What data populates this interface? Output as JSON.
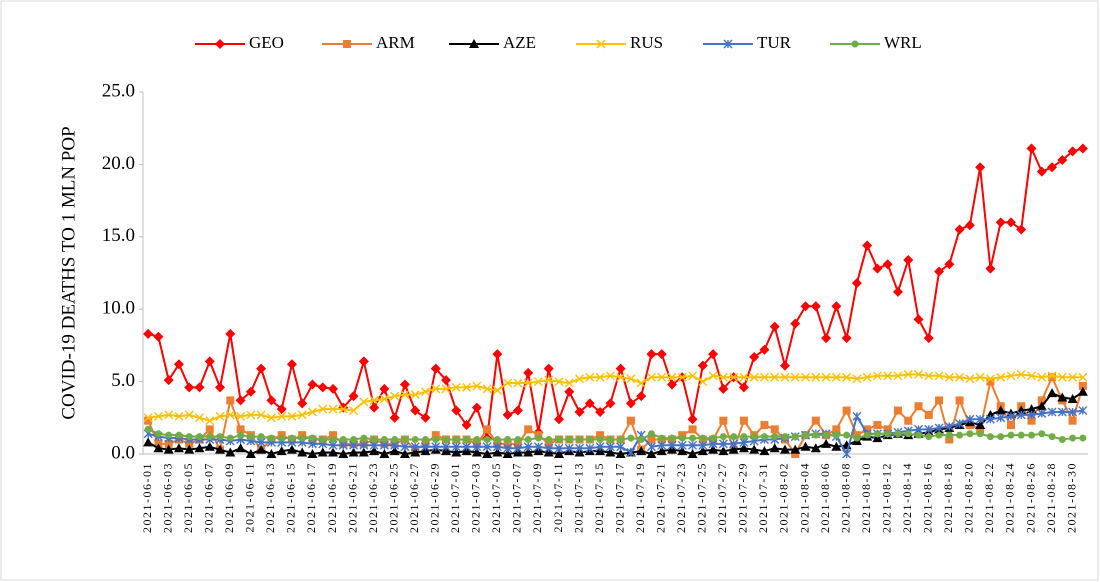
{
  "chart_data": {
    "type": "line",
    "y_label": "COVID-19 DEATHS TO 1 MLN POP",
    "ylim": [
      0,
      25
    ],
    "yticks": [
      {
        "value": 0,
        "label": "0.0"
      },
      {
        "value": 5,
        "label": "5.0"
      },
      {
        "value": 10,
        "label": "10.0"
      },
      {
        "value": 15,
        "label": "15.0"
      },
      {
        "value": 20,
        "label": "20.0"
      },
      {
        "value": 25,
        "label": "25.0"
      }
    ],
    "legend": "top",
    "categories": [
      "2021-06-01",
      null,
      "2021-06-03",
      null,
      "2021-06-05",
      null,
      "2021-06-07",
      null,
      "2021-06-09",
      null,
      "2021-06-11",
      null,
      "2021-06-13",
      null,
      "2021-06-15",
      null,
      "2021-06-17",
      null,
      "2021-06-19",
      null,
      "2021-06-21",
      null,
      "2021-06-23",
      null,
      "2021-06-25",
      null,
      "2021-06-27",
      null,
      "2021-06-29",
      null,
      "2021-07-01",
      null,
      "2021-07-03",
      null,
      "2021-07-05",
      null,
      "2021-07-07",
      null,
      "2021-07-09",
      null,
      "2021-07-11",
      null,
      "2021-07-13",
      null,
      "2021-07-15",
      null,
      "2021-07-17",
      null,
      "2021-07-19",
      null,
      "2021-07-21",
      null,
      "2021-07-23",
      null,
      "2021-07-25",
      null,
      "2021-07-27",
      null,
      "2021-07-29",
      null,
      "2021-07-31",
      null,
      "2021-08-02",
      null,
      "2021-08-04",
      null,
      "2021-08-06",
      null,
      "2021-08-08",
      null,
      "2021-08-10",
      null,
      "2021-08-12",
      null,
      "2021-08-14",
      null,
      "2021-08-16",
      null,
      "2021-08-18",
      null,
      "2021-08-20",
      null,
      "2021-08-22",
      null,
      "2021-08-24",
      null,
      "2021-08-26",
      null,
      "2021-08-28",
      null,
      "2021-08-30",
      null
    ],
    "series": [
      {
        "name": "GEO",
        "color": "#ff0000",
        "marker": "diamond",
        "values": [
          8.3,
          8.1,
          5.1,
          6.2,
          4.6,
          4.6,
          6.4,
          4.6,
          8.3,
          3.7,
          4.3,
          5.9,
          3.7,
          3.1,
          6.2,
          3.5,
          4.8,
          4.6,
          4.5,
          3.2,
          4.0,
          6.4,
          3.2,
          4.5,
          2.5,
          4.8,
          3.0,
          2.5,
          5.9,
          5.1,
          3.0,
          2.0,
          3.2,
          1.1,
          6.9,
          2.7,
          3.0,
          5.6,
          1.5,
          5.9,
          2.4,
          4.3,
          2.9,
          3.5,
          2.9,
          3.5,
          5.9,
          3.5,
          4.0,
          6.9,
          6.9,
          4.8,
          5.3,
          2.4,
          6.1,
          6.9,
          4.5,
          5.3,
          4.6,
          6.7,
          7.2,
          8.8,
          6.1,
          9.0,
          10.2,
          10.2,
          8.0,
          10.2,
          8.0,
          11.8,
          14.4,
          12.8,
          13.1,
          11.2,
          13.4,
          9.3,
          8.0,
          12.6,
          13.1,
          15.5,
          15.8,
          19.8,
          12.8,
          16.0,
          16.0,
          15.5,
          21.1,
          19.5,
          19.8,
          20.3,
          20.9,
          21.1
        ]
      },
      {
        "name": "ARM",
        "color": "#ed7d31",
        "marker": "square",
        "values": [
          2.3,
          0.7,
          0.7,
          1.0,
          0.7,
          1.0,
          1.7,
          0.3,
          3.7,
          1.7,
          1.3,
          0.3,
          1.0,
          1.3,
          1.0,
          1.3,
          1.0,
          1.0,
          1.3,
          0.7,
          0.7,
          0.7,
          1.0,
          0.7,
          0.7,
          1.0,
          0.3,
          0.7,
          1.3,
          1.0,
          1.0,
          1.0,
          0.7,
          1.7,
          0.7,
          0.7,
          0.7,
          1.7,
          1.3,
          0.7,
          1.0,
          1.0,
          1.0,
          1.0,
          1.3,
          1.0,
          1.0,
          2.3,
          0.3,
          1.0,
          1.0,
          1.0,
          1.3,
          1.7,
          1.0,
          1.0,
          2.3,
          0.3,
          2.3,
          1.3,
          2.0,
          1.7,
          1.0,
          0.0,
          1.3,
          2.3,
          1.3,
          1.7,
          3.0,
          1.3,
          1.7,
          2.0,
          1.7,
          3.0,
          2.3,
          3.3,
          2.7,
          3.7,
          1.0,
          3.7,
          2.0,
          1.7,
          5.0,
          3.3,
          2.0,
          3.3,
          2.3,
          3.7,
          5.3,
          3.7,
          2.3,
          4.7
        ]
      },
      {
        "name": "AZE",
        "color": "#000000",
        "marker": "triangle",
        "values": [
          0.8,
          0.4,
          0.3,
          0.4,
          0.3,
          0.4,
          0.5,
          0.3,
          0.1,
          0.4,
          0.0,
          0.3,
          0.0,
          0.2,
          0.3,
          0.1,
          0.0,
          0.1,
          0.1,
          0.0,
          0.1,
          0.1,
          0.2,
          0.0,
          0.2,
          0.0,
          0.1,
          0.2,
          0.3,
          0.2,
          0.1,
          0.2,
          0.1,
          0.0,
          0.1,
          0.0,
          0.1,
          0.1,
          0.2,
          0.1,
          0.0,
          0.2,
          0.1,
          0.2,
          0.2,
          0.1,
          0.0,
          0.1,
          0.2,
          0.0,
          0.2,
          0.3,
          0.2,
          0.0,
          0.2,
          0.3,
          0.2,
          0.3,
          0.4,
          0.3,
          0.2,
          0.4,
          0.3,
          0.3,
          0.5,
          0.4,
          0.7,
          0.5,
          0.6,
          0.9,
          1.2,
          1.1,
          1.3,
          1.4,
          1.3,
          1.4,
          1.5,
          1.7,
          1.8,
          2.0,
          2.2,
          2.0,
          2.7,
          3.0,
          2.8,
          3.0,
          3.1,
          3.3,
          4.2,
          3.9,
          3.8,
          4.3
        ]
      },
      {
        "name": "RUS",
        "color": "#ffc000",
        "marker": "x",
        "values": [
          2.5,
          2.6,
          2.7,
          2.6,
          2.7,
          2.5,
          2.3,
          2.6,
          2.7,
          2.6,
          2.7,
          2.7,
          2.5,
          2.6,
          2.6,
          2.7,
          2.9,
          3.1,
          3.1,
          3.1,
          3.0,
          3.6,
          3.7,
          3.8,
          4.0,
          4.1,
          4.1,
          4.3,
          4.5,
          4.5,
          4.6,
          4.6,
          4.7,
          4.5,
          4.4,
          4.9,
          4.9,
          4.9,
          5.0,
          5.1,
          5.0,
          4.9,
          5.2,
          5.3,
          5.3,
          5.4,
          5.3,
          5.2,
          4.9,
          5.3,
          5.3,
          5.3,
          5.3,
          5.4,
          5.0,
          5.4,
          5.3,
          5.3,
          5.3,
          5.3,
          5.3,
          5.3,
          5.3,
          5.3,
          5.3,
          5.3,
          5.3,
          5.3,
          5.3,
          5.2,
          5.3,
          5.4,
          5.4,
          5.4,
          5.5,
          5.5,
          5.4,
          5.4,
          5.3,
          5.3,
          5.2,
          5.3,
          5.2,
          5.3,
          5.4,
          5.5,
          5.4,
          5.3,
          5.4,
          5.3,
          5.3,
          5.3
        ]
      },
      {
        "name": "TUR",
        "color": "#4472c4",
        "marker": "asterisk",
        "values": [
          1.4,
          1.2,
          1.1,
          1.1,
          1.0,
          1.0,
          1.0,
          1.0,
          0.9,
          1.0,
          0.9,
          0.8,
          0.8,
          0.8,
          0.8,
          0.8,
          0.7,
          0.7,
          0.6,
          0.6,
          0.6,
          0.6,
          0.6,
          0.6,
          0.6,
          0.5,
          0.5,
          0.5,
          0.5,
          0.5,
          0.5,
          0.5,
          0.5,
          0.5,
          0.5,
          0.4,
          0.4,
          0.5,
          0.5,
          0.4,
          0.4,
          0.4,
          0.4,
          0.4,
          0.5,
          0.5,
          0.5,
          0.1,
          1.3,
          0.5,
          0.6,
          0.6,
          0.6,
          0.6,
          0.6,
          0.7,
          0.7,
          0.7,
          0.8,
          0.9,
          1.0,
          1.0,
          1.1,
          1.2,
          1.3,
          1.4,
          1.4,
          1.2,
          0.0,
          2.6,
          1.4,
          1.4,
          1.4,
          1.5,
          1.6,
          1.7,
          1.7,
          1.8,
          1.9,
          2.1,
          2.4,
          2.4,
          2.4,
          2.5,
          2.6,
          2.7,
          2.7,
          2.8,
          2.9,
          2.9,
          2.9,
          3.0
        ]
      },
      {
        "name": "WRL",
        "color": "#70ad47",
        "marker": "circle",
        "values": [
          1.7,
          1.4,
          1.3,
          1.3,
          1.2,
          1.2,
          1.2,
          1.2,
          1.1,
          1.3,
          1.2,
          1.2,
          1.1,
          1.1,
          1.1,
          1.1,
          1.1,
          1.0,
          1.0,
          1.0,
          1.0,
          1.1,
          1.0,
          1.0,
          1.0,
          1.0,
          1.0,
          1.0,
          1.0,
          1.0,
          1.0,
          1.0,
          1.0,
          1.0,
          1.0,
          1.0,
          1.0,
          1.0,
          1.1,
          1.0,
          1.0,
          1.0,
          1.0,
          1.0,
          1.0,
          1.0,
          1.0,
          1.1,
          1.0,
          1.4,
          1.1,
          1.1,
          1.1,
          1.1,
          1.1,
          1.1,
          1.2,
          1.2,
          1.2,
          1.2,
          1.2,
          1.2,
          1.2,
          1.2,
          1.3,
          1.3,
          1.3,
          1.3,
          1.3,
          1.1,
          1.3,
          1.4,
          1.4,
          1.4,
          1.4,
          1.3,
          1.2,
          1.3,
          1.3,
          1.3,
          1.4,
          1.4,
          1.2,
          1.2,
          1.3,
          1.3,
          1.3,
          1.4,
          1.2,
          1.0,
          1.1,
          1.1
        ]
      }
    ]
  }
}
